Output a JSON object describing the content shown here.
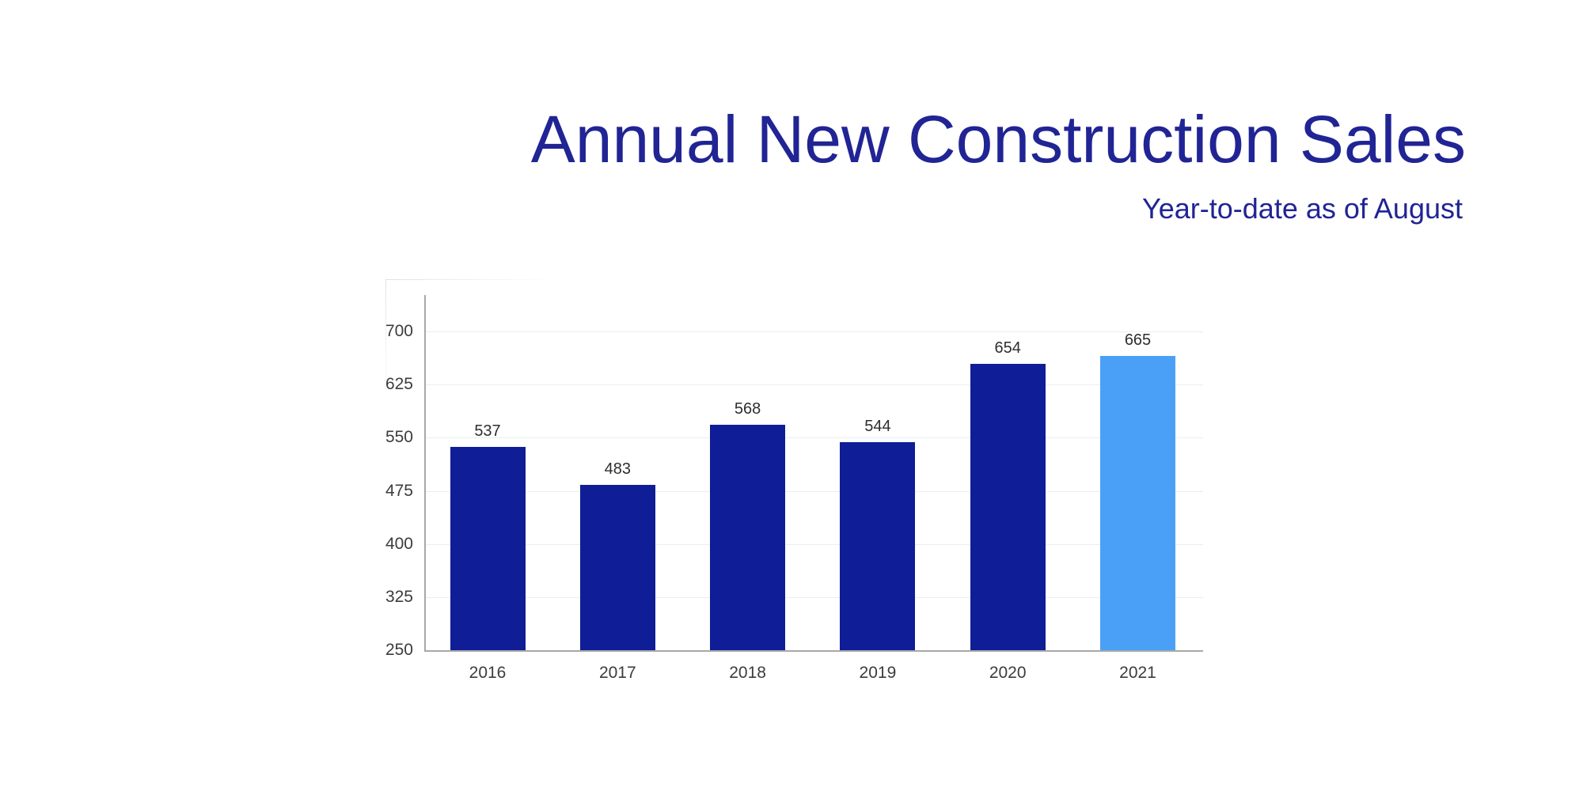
{
  "header": {
    "title": "Annual New Construction Sales",
    "subtitle": "Year-to-date as of August"
  },
  "chart_data": {
    "type": "bar",
    "title": "Annual New Construction Sales",
    "subtitle": "Year-to-date as of August",
    "categories": [
      "2016",
      "2017",
      "2018",
      "2019",
      "2020",
      "2021"
    ],
    "values": [
      537,
      483,
      568,
      544,
      654,
      665
    ],
    "bar_colors": [
      "#0f1d96",
      "#0f1d96",
      "#0f1d96",
      "#0f1d96",
      "#0f1d96",
      "#4aa0f7"
    ],
    "show_value_labels": true,
    "xlabel": "",
    "ylabel": "",
    "ylim": [
      250,
      700
    ],
    "yticks": [
      250,
      325,
      400,
      475,
      550,
      625,
      700
    ],
    "grid": true,
    "legend": false
  },
  "colors": {
    "title_text": "#212494",
    "subtitle_text": "#212494",
    "bar_navy": "#0f1d96",
    "bar_highlight": "#4aa0f7",
    "gridline": "#e8eef5",
    "axis_line": "#a8a8a8",
    "tick_label": "#3c3c3c",
    "value_label": "#2e2e2e",
    "card_edge": "#e2e2e2",
    "background": "#ffffff"
  }
}
